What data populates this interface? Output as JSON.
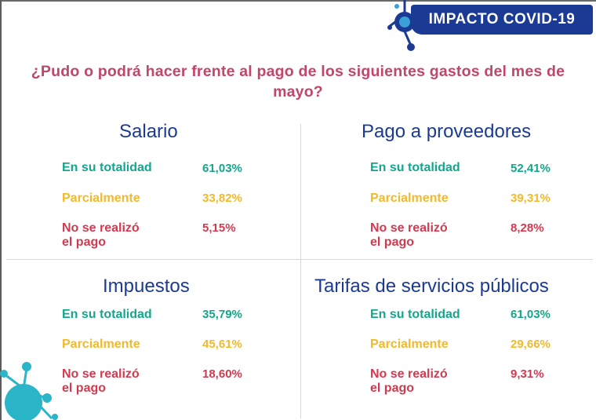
{
  "badge": {
    "label": "IMPACTO COVID-19"
  },
  "question": "¿Pudo o podrá hacer frente al pago de los siguientes gastos del mes de mayo?",
  "colors": {
    "teal": "#14a68c",
    "yellow": "#f2b92c",
    "red": "#d3394f",
    "navy": "#1b3a93",
    "question": "#c2456a"
  },
  "icons": [
    "virus-icon"
  ],
  "sections": [
    {
      "title": "Salario",
      "rows": [
        {
          "label": "En su totalidad",
          "value": "61,03%"
        },
        {
          "label": "Parcialmente",
          "value": "33,82%"
        },
        {
          "label_line1": "No se realizó",
          "label_line2": "el pago",
          "value": "5,15%"
        }
      ]
    },
    {
      "title": "Pago a proveedores",
      "rows": [
        {
          "label": "En su totalidad",
          "value": "52,41%"
        },
        {
          "label": "Parcialmente",
          "value": "39,31%"
        },
        {
          "label_line1": "No se realizó",
          "label_line2": "el pago",
          "value": "8,28%"
        }
      ]
    },
    {
      "title": "Impuestos",
      "rows": [
        {
          "label": "En su totalidad",
          "value": "35,79%"
        },
        {
          "label": "Parcialmente",
          "value": "45,61%"
        },
        {
          "label_line1": "No se realizó",
          "label_line2": "el pago",
          "value": "18,60%"
        }
      ]
    },
    {
      "title": "Tarifas de servicios públicos",
      "rows": [
        {
          "label": "En su totalidad",
          "value": "61,03%"
        },
        {
          "label": "Parcialmente",
          "value": "29,66%"
        },
        {
          "label_line1": "No se realizó",
          "label_line2": "el pago",
          "value": "9,31%"
        }
      ]
    }
  ]
}
